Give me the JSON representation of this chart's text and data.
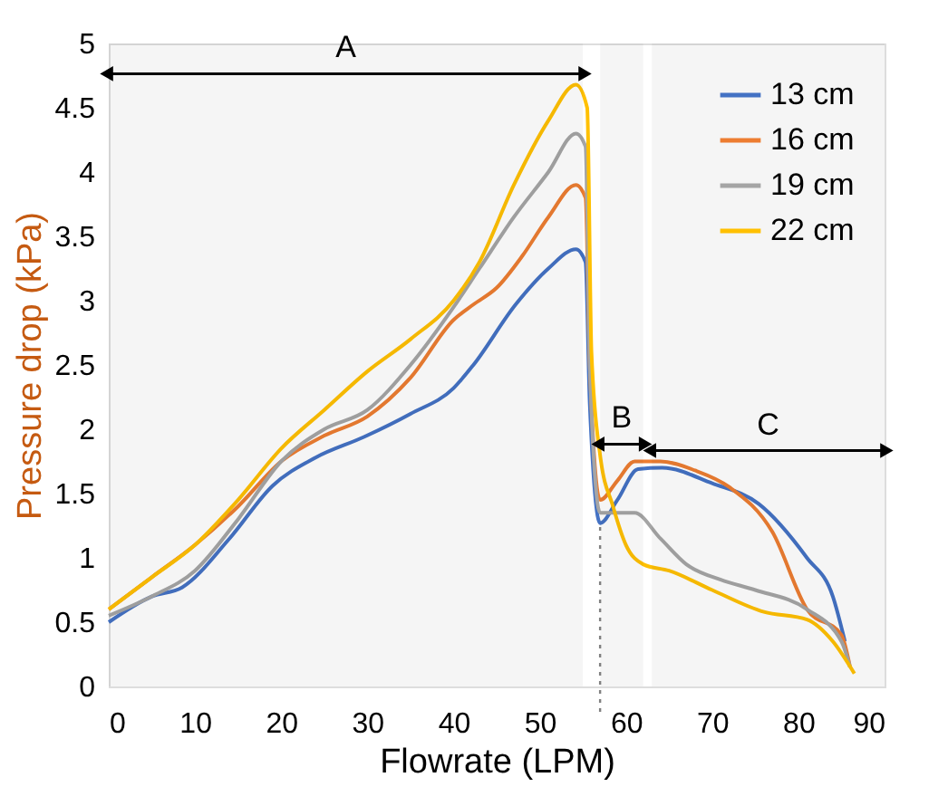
{
  "chart_data": {
    "type": "line",
    "xlabel": "Flowrate (LPM)",
    "ylabel": "Pressure drop (kPa)",
    "xlim": [
      0,
      90
    ],
    "xticks": [
      0,
      10,
      20,
      30,
      40,
      50,
      60,
      70,
      80,
      90
    ],
    "ylim": [
      0,
      5
    ],
    "yticks": [
      0,
      0.5,
      1,
      1.5,
      2,
      2.5,
      3,
      3.5,
      4,
      4.5,
      5
    ],
    "grid": false,
    "legend": "top right",
    "line_style": "solid",
    "marker": "none",
    "series": [
      {
        "name": "13 cm",
        "color": "#4472c4",
        "x": [
          0,
          5,
          8.5,
          14,
          19,
          24,
          29.6,
          35,
          40,
          42.3,
          47.2,
          51,
          54.2,
          55.3,
          55.8,
          57,
          59,
          61.4,
          64.2,
          70,
          75.4,
          81,
          84,
          85.4
        ],
        "values": [
          0.5,
          0.7,
          0.77,
          1.15,
          1.56,
          1.78,
          1.94,
          2.12,
          2.32,
          2.5,
          2.97,
          3.25,
          3.4,
          3.3,
          2.2,
          1.27,
          1.45,
          1.69,
          1.7,
          1.58,
          1.42,
          1.0,
          0.7,
          0.35
        ]
      },
      {
        "name": "16 cm",
        "color": "#ed7d31",
        "x": [
          0,
          5,
          10,
          15,
          20,
          25,
          30,
          35,
          40,
          42.3,
          45,
          48,
          51,
          54.2,
          55.3,
          55.8,
          57,
          59,
          61,
          64,
          68,
          72,
          77,
          81,
          85,
          86
        ],
        "values": [
          0.6,
          0.85,
          1.1,
          1.4,
          1.75,
          1.95,
          2.1,
          2.4,
          2.85,
          2.97,
          3.1,
          3.35,
          3.65,
          3.9,
          3.8,
          2.5,
          1.45,
          1.6,
          1.75,
          1.75,
          1.68,
          1.55,
          1.2,
          0.6,
          0.4,
          0.15
        ]
      },
      {
        "name": "19 cm",
        "color": "#a5a5a5",
        "x": [
          0,
          5,
          10,
          15,
          20,
          25,
          30,
          35,
          40,
          43,
          47,
          51,
          54.2,
          55.3,
          55.8,
          57,
          61,
          64,
          67,
          71,
          75,
          81,
          85,
          86
        ],
        "values": [
          0.55,
          0.7,
          0.9,
          1.3,
          1.75,
          2.0,
          2.15,
          2.5,
          2.95,
          3.25,
          3.65,
          4.0,
          4.3,
          4.2,
          2.5,
          1.35,
          1.35,
          1.15,
          0.95,
          0.83,
          0.75,
          0.6,
          0.35,
          0.15
        ]
      },
      {
        "name": "22 cm",
        "color": "#ffc000",
        "x": [
          0,
          5,
          10,
          15,
          20,
          25,
          30,
          35,
          40,
          43,
          47,
          51,
          54.2,
          55.5,
          56,
          57,
          58.5,
          60,
          62,
          65,
          70,
          76,
          81,
          84,
          86.5
        ],
        "values": [
          0.6,
          0.85,
          1.1,
          1.45,
          1.85,
          2.15,
          2.45,
          2.7,
          3.0,
          3.3,
          3.9,
          4.4,
          4.68,
          4.5,
          2.6,
          1.8,
          1.4,
          1.1,
          0.95,
          0.9,
          0.75,
          0.58,
          0.52,
          0.35,
          0.1
        ]
      }
    ],
    "bands": [
      {
        "axis": "x",
        "from": 0,
        "to": 55,
        "label": "A",
        "color": "#000000"
      },
      {
        "axis": "x",
        "from": 57,
        "to": 62,
        "label": "B",
        "color": "#000000"
      },
      {
        "axis": "x",
        "from": 63,
        "to": 90,
        "label": "C",
        "color": "#000000"
      }
    ],
    "ref_lines": [
      {
        "axis": "x",
        "value": 57,
        "line_style": "dotted",
        "color": "#808080"
      }
    ]
  }
}
